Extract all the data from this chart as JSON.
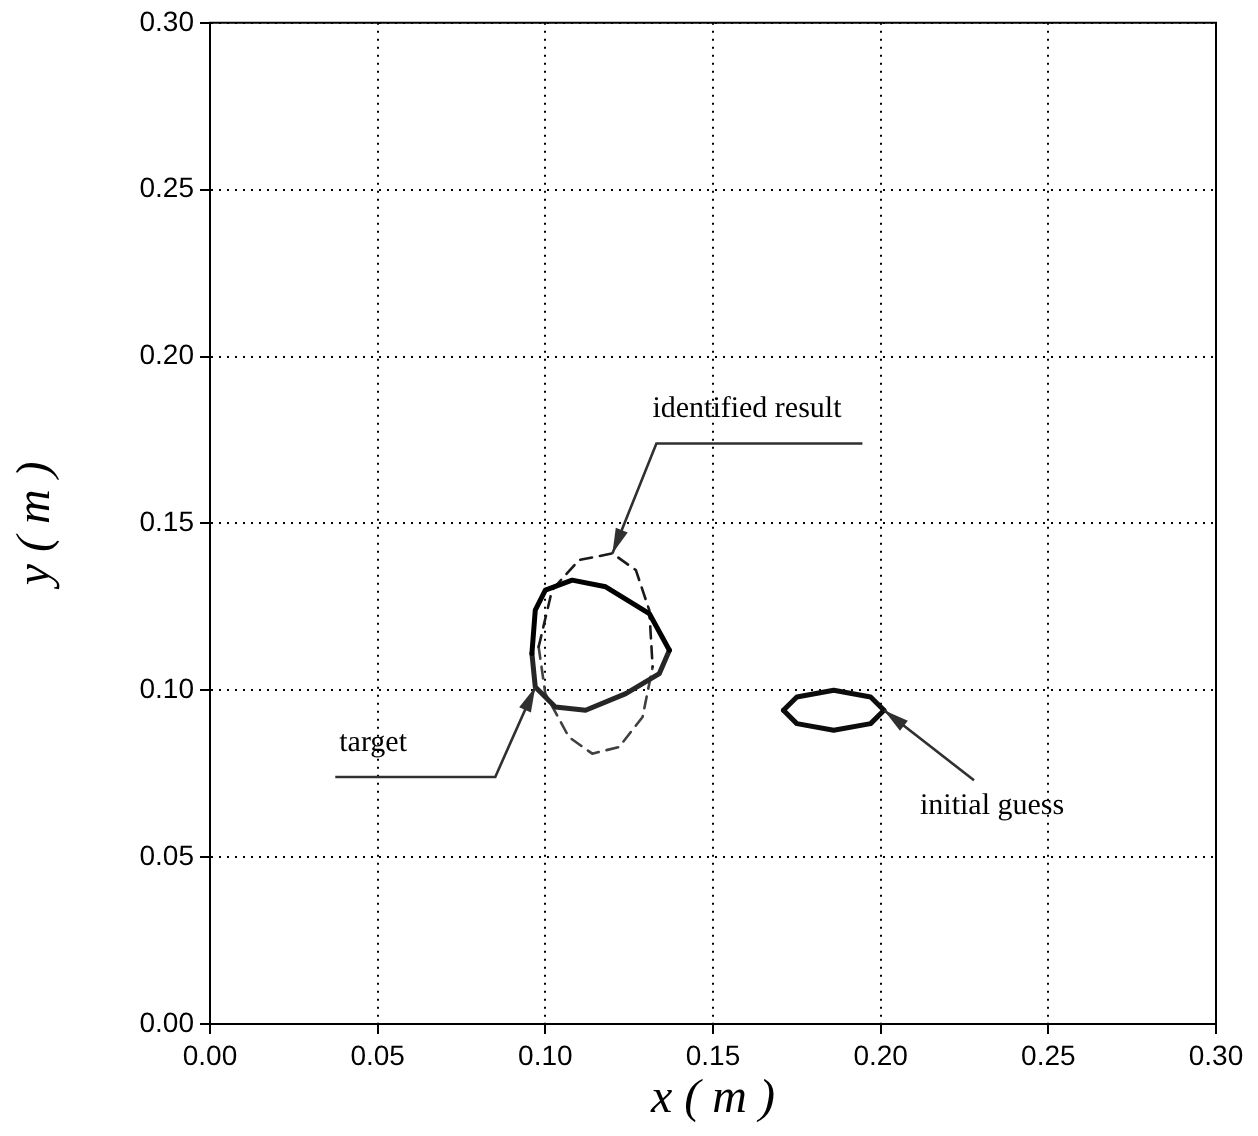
{
  "chart_data": {
    "type": "line",
    "xlabel": "x ( m )",
    "ylabel": "y ( m )",
    "xlim": [
      0,
      0.3
    ],
    "ylim": [
      0,
      0.3
    ],
    "xticks": [
      {
        "value": 0,
        "label": "0.00"
      },
      {
        "value": 0.05,
        "label": "0.05"
      },
      {
        "value": 0.1,
        "label": "0.10"
      },
      {
        "value": 0.15,
        "label": "0.15"
      },
      {
        "value": 0.2,
        "label": "0.20"
      },
      {
        "value": 0.25,
        "label": "0.25"
      },
      {
        "value": 0.3,
        "label": "0.30"
      }
    ],
    "yticks": [
      {
        "value": 0,
        "label": "0.00"
      },
      {
        "value": 0.05,
        "label": "0.05"
      },
      {
        "value": 0.1,
        "label": "0.10"
      },
      {
        "value": 0.15,
        "label": "0.15"
      },
      {
        "value": 0.2,
        "label": "0.20"
      },
      {
        "value": 0.25,
        "label": "0.25"
      },
      {
        "value": 0.3,
        "label": "0.30"
      }
    ],
    "grid": true,
    "marker": "none",
    "legend": false,
    "series": [
      {
        "color": "#000000",
        "line_style": "solid",
        "x": [
          0.096,
          0.097,
          0.1,
          0.108,
          0.118,
          0.131,
          0.137
        ],
        "values": [
          0.111,
          0.124,
          0.13,
          0.133,
          0.131,
          0.123,
          0.112
        ]
      },
      {
        "color": "#262626",
        "line_style": "solid",
        "x": [
          0.096,
          0.097,
          0.103,
          0.112,
          0.124,
          0.134,
          0.137
        ],
        "values": [
          0.111,
          0.101,
          0.095,
          0.094,
          0.099,
          0.105,
          0.112
        ]
      },
      {
        "color": "#1a1a1a",
        "line_style": "dashed",
        "x": [
          0.098,
          0.102,
          0.11,
          0.12,
          0.127,
          0.131,
          0.132
        ],
        "values": [
          0.113,
          0.13,
          0.139,
          0.141,
          0.136,
          0.124,
          0.107
        ]
      },
      {
        "color": "#404040",
        "line_style": "dashed",
        "x": [
          0.098,
          0.1,
          0.107,
          0.114,
          0.122,
          0.129,
          0.132
        ],
        "values": [
          0.113,
          0.099,
          0.086,
          0.081,
          0.083,
          0.092,
          0.107
        ]
      },
      {
        "color": "#0d0d0d",
        "line_style": "solid",
        "x": [
          0.171,
          0.175,
          0.186,
          0.197,
          0.201
        ],
        "values": [
          0.094,
          0.098,
          0.1,
          0.098,
          0.094
        ]
      },
      {
        "color": "#0d0d0d",
        "line_style": "solid",
        "x": [
          0.171,
          0.175,
          0.186,
          0.197,
          0.201
        ],
        "values": [
          0.094,
          0.09,
          0.088,
          0.09,
          0.094
        ]
      }
    ],
    "annotations": [
      {
        "text": "identified result",
        "x": 0.12,
        "y": 0.141
      },
      {
        "text": "target",
        "x": 0.097,
        "y": 0.101
      },
      {
        "text": "initial guess",
        "x": 0.201,
        "y": 0.094
      }
    ]
  }
}
